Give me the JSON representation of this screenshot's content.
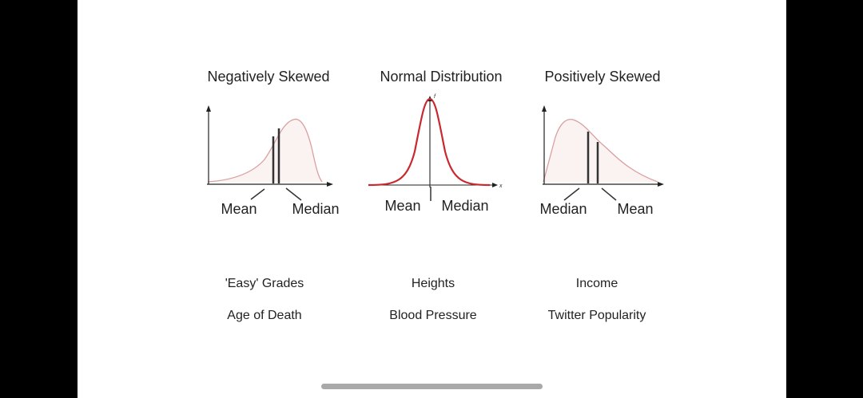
{
  "panels": [
    {
      "title": "Negatively Skewed",
      "left_label": "Mean",
      "right_label": "Median",
      "examples": [
        "'Easy' Grades",
        "Age of Death"
      ]
    },
    {
      "title": "Normal Distribution",
      "left_label": "Mean",
      "right_label": "Median",
      "axis_y_tag": "f",
      "axis_x_tag": "x",
      "examples": [
        "Heights",
        "Blood Pressure"
      ]
    },
    {
      "title": "Positively Skewed",
      "left_label": "Median",
      "right_label": "Mean",
      "examples": [
        "Income",
        "Twitter Popularity"
      ]
    }
  ],
  "colors": {
    "skewed_curve": "#d9a0a0",
    "skewed_fill": "#fbf2f2",
    "normal_curve": "#c8282e",
    "marker_line": "#333333",
    "axis": "#222222"
  }
}
